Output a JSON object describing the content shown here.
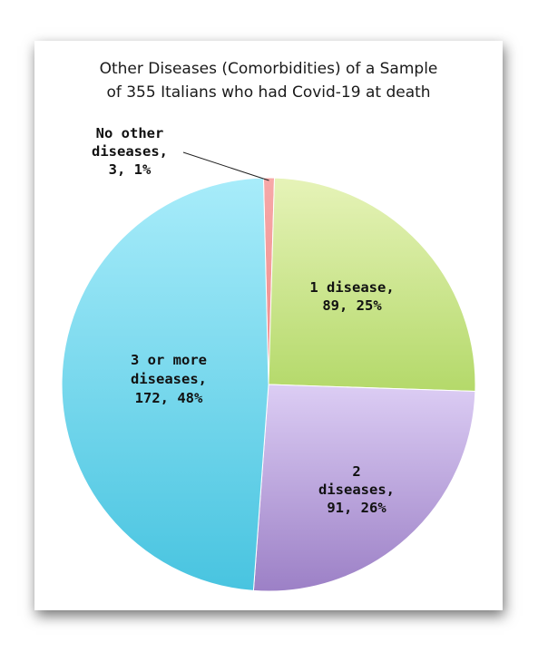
{
  "chart_data": {
    "type": "pie",
    "title_lines": [
      "Other Diseases (Comorbidities) of a Sample",
      "of 355 Italians who had Covid-19 at death"
    ],
    "slices": [
      {
        "label": "No other diseases",
        "value": 3,
        "percent": "1%",
        "label_lines": [
          "No other",
          "diseases,",
          "3, 1%"
        ],
        "colors": [
          "#f7a8a8",
          "#ee8a8a"
        ]
      },
      {
        "label": "1 disease",
        "value": 89,
        "percent": "25%",
        "label_lines": [
          "1 disease,",
          "89, 25%"
        ],
        "colors": [
          "#e6f3b8",
          "#b4d96a"
        ]
      },
      {
        "label": "2 diseases",
        "value": 91,
        "percent": "26%",
        "label_lines": [
          "2",
          "diseases,",
          "91, 26%"
        ],
        "colors": [
          "#dccdf4",
          "#9c80c6"
        ]
      },
      {
        "label": "3 or more diseases",
        "value": 172,
        "percent": "48%",
        "label_lines": [
          "3 or more",
          "diseases,",
          "172, 48%"
        ],
        "colors": [
          "#a8ecfa",
          "#48c4e0"
        ]
      }
    ],
    "legend": "none"
  }
}
